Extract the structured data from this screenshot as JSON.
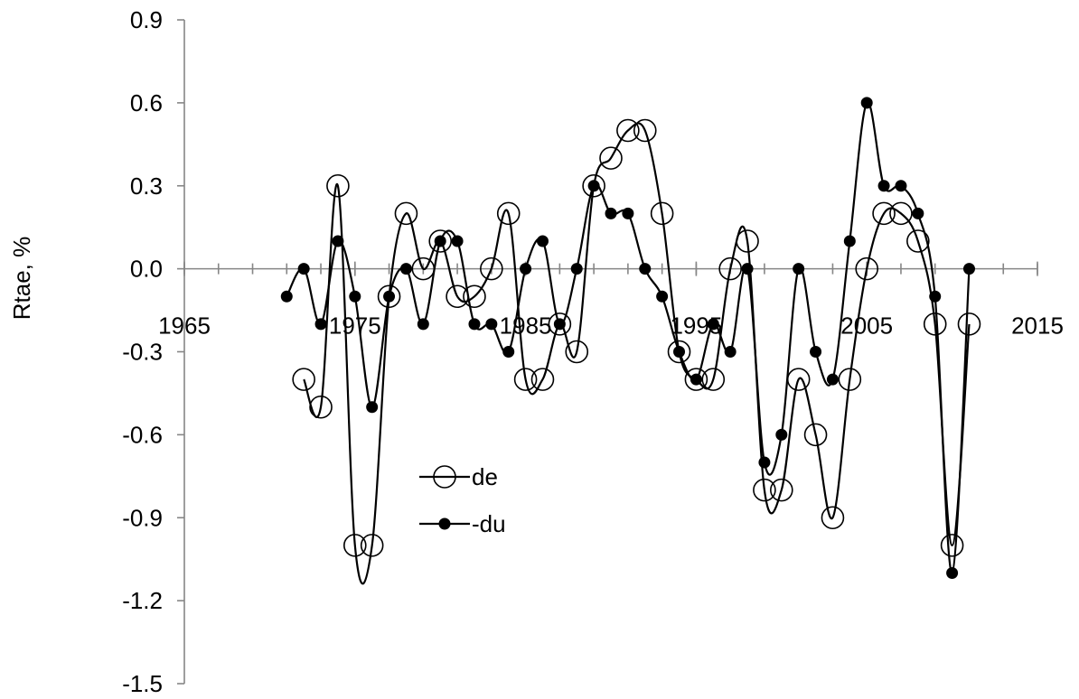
{
  "chart_data": {
    "type": "line",
    "ylabel": "Rtae, %",
    "xlabel": "",
    "xlim": [
      1965,
      2015
    ],
    "ylim": [
      -1.5,
      0.9
    ],
    "x_ticks": [
      1965,
      1975,
      1985,
      1995,
      2005,
      2015
    ],
    "y_ticks": [
      0.9,
      0.6,
      0.3,
      0.0,
      -0.3,
      -0.6,
      -0.9,
      -1.2,
      -1.5
    ],
    "x_tick_labels": [
      "1965",
      "1975",
      "1985",
      "1995",
      "2005",
      "2015"
    ],
    "y_tick_labels": [
      "0.9",
      "0.6",
      "0.3",
      "0.0",
      "-0.3",
      "-0.6",
      "-0.9",
      "-1.2",
      "-1.5"
    ],
    "x_axis_crosses_at": 0.0,
    "smoothed": true,
    "grid": false,
    "legend_position": "lower-left inside plot",
    "series": [
      {
        "name": "de",
        "marker": "open-circle",
        "x": [
          1972,
          1973,
          1974,
          1975,
          1976,
          1977,
          1978,
          1979,
          1980,
          1981,
          1982,
          1983,
          1984,
          1985,
          1986,
          1987,
          1988,
          1989,
          1990,
          1991,
          1992,
          1993,
          1994,
          1995,
          1996,
          1997,
          1998,
          1999,
          2000,
          2001,
          2002,
          2003,
          2004,
          2005,
          2006,
          2007,
          2008,
          2009,
          2010,
          2011
        ],
        "values": [
          -0.4,
          -0.5,
          0.3,
          -1.0,
          -1.0,
          -0.1,
          0.2,
          0.0,
          0.1,
          -0.1,
          -0.1,
          0.0,
          0.2,
          -0.4,
          -0.4,
          -0.2,
          -0.3,
          0.3,
          0.4,
          0.5,
          0.5,
          0.2,
          -0.3,
          -0.4,
          -0.4,
          0.0,
          0.1,
          -0.8,
          -0.8,
          -0.4,
          -0.6,
          -0.9,
          -0.4,
          0.0,
          0.2,
          0.2,
          0.1,
          -0.2,
          -1.0,
          -0.2
        ]
      },
      {
        "name": "-du",
        "marker": "filled-circle",
        "x": [
          1971,
          1972,
          1973,
          1974,
          1975,
          1976,
          1977,
          1978,
          1979,
          1980,
          1981,
          1982,
          1983,
          1984,
          1985,
          1986,
          1987,
          1988,
          1989,
          1990,
          1991,
          1992,
          1993,
          1994,
          1995,
          1996,
          1997,
          1998,
          1999,
          2000,
          2001,
          2002,
          2003,
          2004,
          2005,
          2006,
          2007,
          2008,
          2009,
          2010,
          2011
        ],
        "values": [
          -0.1,
          0.0,
          -0.2,
          0.1,
          -0.1,
          -0.5,
          -0.1,
          0.0,
          -0.2,
          0.1,
          0.1,
          -0.2,
          -0.2,
          -0.3,
          0.0,
          0.1,
          -0.2,
          0.0,
          0.3,
          0.2,
          0.2,
          0.0,
          -0.1,
          -0.3,
          -0.4,
          -0.2,
          -0.3,
          0.0,
          -0.7,
          -0.6,
          0.0,
          -0.3,
          -0.4,
          0.1,
          0.6,
          0.3,
          0.3,
          0.2,
          -0.1,
          -1.1,
          0.0
        ]
      }
    ]
  }
}
